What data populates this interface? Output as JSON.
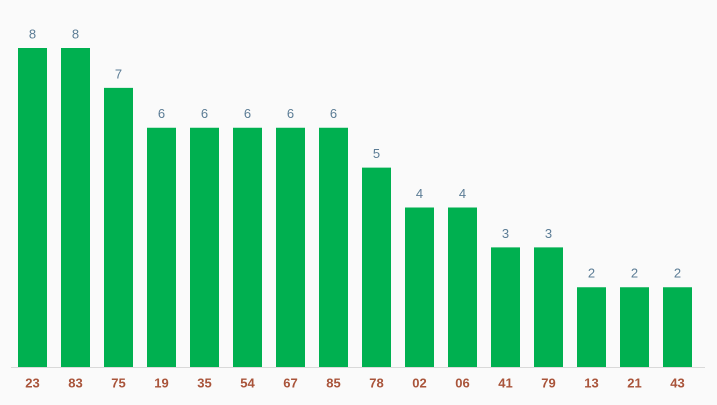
{
  "chart_data": {
    "type": "bar",
    "categories": [
      "23",
      "83",
      "75",
      "19",
      "35",
      "54",
      "67",
      "85",
      "78",
      "02",
      "06",
      "41",
      "79",
      "13",
      "21",
      "43"
    ],
    "values": [
      8,
      8,
      7,
      6,
      6,
      6,
      6,
      6,
      5,
      4,
      4,
      3,
      3,
      2,
      2,
      2
    ],
    "color": "#00b050"
  }
}
